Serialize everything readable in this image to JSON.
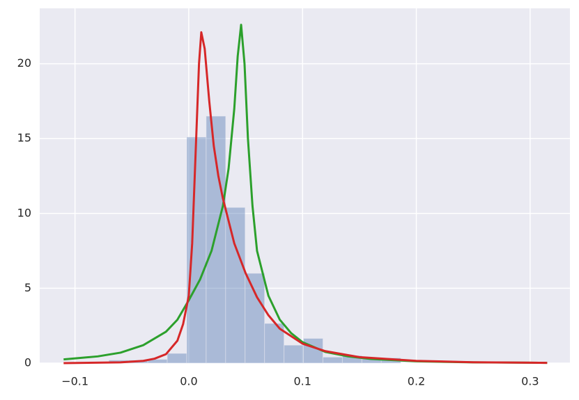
{
  "chart_data": {
    "type": "histogram",
    "bins": [
      -0.1044,
      -0.0873,
      -0.0702,
      -0.0531,
      -0.036,
      -0.0189,
      -0.0018,
      0.0153,
      0.0324,
      0.0495,
      0.0666,
      0.0837,
      0.1008,
      0.1179,
      0.135,
      0.1521,
      0.1692,
      0.1863
    ],
    "values": [
      0.02,
      0.02,
      0.2,
      0.2,
      0.25,
      0.65,
      15.1,
      16.5,
      10.4,
      6.0,
      2.65,
      1.2,
      1.65,
      0.4,
      0.5,
      0.3,
      0.35
    ],
    "color": "#4c72b0",
    "overlays": [
      {
        "type": "line",
        "color": "#2ca02c",
        "x": [
          -0.11,
          -0.08,
          -0.06,
          -0.04,
          -0.02,
          -0.01,
          0.0,
          0.01,
          0.02,
          0.03,
          0.035,
          0.04,
          0.043,
          0.046,
          0.049,
          0.052,
          0.056,
          0.06,
          0.07,
          0.08,
          0.09,
          0.1,
          0.12,
          0.14,
          0.16,
          0.2,
          0.25,
          0.315
        ],
        "values": [
          0.25,
          0.45,
          0.7,
          1.2,
          2.1,
          2.9,
          4.2,
          5.6,
          7.5,
          10.5,
          13,
          17,
          20.5,
          22.6,
          20,
          15,
          10.5,
          7.5,
          4.5,
          2.9,
          2.0,
          1.4,
          0.75,
          0.45,
          0.28,
          0.12,
          0.05,
          0.02
        ]
      },
      {
        "type": "line",
        "color": "#d62728",
        "x": [
          -0.11,
          -0.06,
          -0.04,
          -0.03,
          -0.02,
          -0.01,
          -0.005,
          0.0,
          0.003,
          0.006,
          0.009,
          0.011,
          0.014,
          0.018,
          0.022,
          0.026,
          0.03,
          0.04,
          0.05,
          0.06,
          0.07,
          0.08,
          0.1,
          0.12,
          0.15,
          0.2,
          0.25,
          0.315
        ],
        "values": [
          0.0,
          0.05,
          0.15,
          0.3,
          0.6,
          1.5,
          2.6,
          4.5,
          8,
          14,
          20,
          22.1,
          21,
          17.5,
          14.5,
          12.5,
          11,
          8,
          6,
          4.4,
          3.2,
          2.3,
          1.3,
          0.8,
          0.4,
          0.15,
          0.06,
          0.02
        ]
      }
    ],
    "xlim": [
      -0.131,
      0.335
    ],
    "ylim": [
      0,
      23.7
    ],
    "xticks": [
      {
        "value": -0.1,
        "label": "−0.1"
      },
      {
        "value": 0,
        "label": "0.0"
      },
      0.1,
      0.2,
      0.3
    ],
    "yticks": [
      0,
      5,
      10,
      15,
      20
    ],
    "grid": true
  }
}
